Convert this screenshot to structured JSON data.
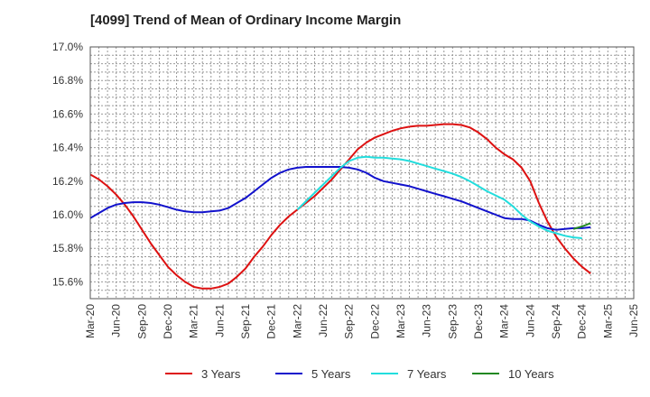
{
  "chart_data": {
    "type": "line",
    "title": "[4099]  Trend of Mean of Ordinary Income Margin",
    "xlabel": "",
    "ylabel": "",
    "ylim": [
      15.5,
      17.0
    ],
    "x_tick_labels": [
      "Mar-20",
      "Jun-20",
      "Sep-20",
      "Dec-20",
      "Mar-21",
      "Jun-21",
      "Sep-21",
      "Dec-21",
      "Mar-22",
      "Jun-22",
      "Sep-22",
      "Dec-22",
      "Mar-23",
      "Jun-23",
      "Sep-23",
      "Dec-23",
      "Mar-24",
      "Jun-24",
      "Sep-24",
      "Dec-24",
      "Mar-25",
      "Jun-25"
    ],
    "y_ticks": [
      15.6,
      15.8,
      16.0,
      16.2,
      16.4,
      16.6,
      16.8,
      17.0
    ],
    "y_tick_labels": [
      "15.6%",
      "15.8%",
      "16.0%",
      "16.2%",
      "16.4%",
      "16.6%",
      "16.8%",
      "17.0%"
    ],
    "grid": true,
    "legend_position": "bottom",
    "series": [
      {
        "name": "3 Years",
        "color": "#dd1111",
        "start_index": 0,
        "values": [
          16.24,
          16.21,
          16.17,
          16.12,
          16.06,
          15.99,
          15.91,
          15.83,
          15.76,
          15.69,
          15.64,
          15.6,
          15.57,
          15.56,
          15.56,
          15.57,
          15.59,
          15.63,
          15.68,
          15.75,
          15.81,
          15.88,
          15.94,
          15.99,
          16.03,
          16.07,
          16.11,
          16.16,
          16.21,
          16.27,
          16.33,
          16.39,
          16.43,
          16.46,
          16.48,
          16.5,
          16.515,
          16.525,
          16.53,
          16.53,
          16.535,
          16.54,
          16.54,
          16.535,
          16.52,
          16.49,
          16.45,
          16.4,
          16.36,
          16.33,
          16.28,
          16.2,
          16.07,
          15.96,
          15.87,
          15.8,
          15.74,
          15.69,
          15.65
        ]
      },
      {
        "name": "5 Years",
        "color": "#1111cc",
        "start_index": 0,
        "values": [
          15.98,
          16.01,
          16.04,
          16.06,
          16.07,
          16.075,
          16.075,
          16.07,
          16.06,
          16.045,
          16.03,
          16.02,
          16.015,
          16.015,
          16.02,
          16.025,
          16.04,
          16.07,
          16.1,
          16.14,
          16.18,
          16.22,
          16.25,
          16.27,
          16.28,
          16.285,
          16.285,
          16.285,
          16.285,
          16.285,
          16.28,
          16.27,
          16.25,
          16.22,
          16.2,
          16.19,
          16.18,
          16.17,
          16.155,
          16.14,
          16.125,
          16.11,
          16.095,
          16.08,
          16.06,
          16.04,
          16.02,
          16.0,
          15.98,
          15.975,
          15.975,
          15.965,
          15.94,
          15.92,
          15.91,
          15.915,
          15.92,
          15.92,
          15.925
        ]
      },
      {
        "name": "7 Years",
        "color": "#22dddd",
        "start_index": 24,
        "values": [
          16.03,
          16.08,
          16.13,
          16.18,
          16.23,
          16.28,
          16.32,
          16.34,
          16.345,
          16.34,
          16.34,
          16.335,
          16.33,
          16.32,
          16.305,
          16.29,
          16.275,
          16.26,
          16.245,
          16.225,
          16.2,
          16.17,
          16.14,
          16.115,
          16.09,
          16.05,
          16.0,
          15.96,
          15.93,
          15.905,
          15.89,
          15.875,
          15.865,
          15.86
        ]
      },
      {
        "name": "10 Years",
        "color": "#228822",
        "start_index": 56,
        "values": [
          15.915,
          15.93,
          15.95
        ]
      }
    ]
  }
}
